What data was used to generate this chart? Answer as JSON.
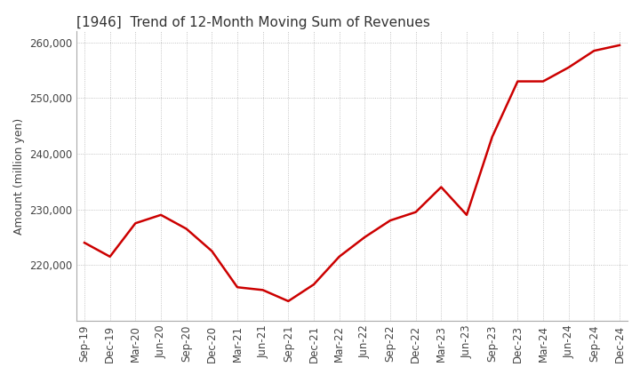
{
  "title": "[1946]  Trend of 12-Month Moving Sum of Revenues",
  "ylabel": "Amount (million yen)",
  "title_fontsize": 11,
  "label_fontsize": 9,
  "tick_fontsize": 8.5,
  "line_color": "#cc0000",
  "bg_color": "#ffffff",
  "grid_color": "#aaaaaa",
  "x_labels": [
    "Sep-19",
    "Dec-19",
    "Mar-20",
    "Jun-20",
    "Sep-20",
    "Dec-20",
    "Mar-21",
    "Jun-21",
    "Sep-21",
    "Dec-21",
    "Mar-22",
    "Jun-22",
    "Sep-22",
    "Dec-22",
    "Mar-23",
    "Jun-23",
    "Sep-23",
    "Dec-23",
    "Mar-24",
    "Jun-24",
    "Sep-24",
    "Dec-24"
  ],
  "values": [
    224000,
    221500,
    227500,
    229000,
    226500,
    222500,
    216000,
    215500,
    213500,
    216500,
    221500,
    225000,
    228000,
    229500,
    234000,
    229000,
    243000,
    253000,
    253000,
    255500,
    258500,
    259500
  ],
  "ylim_min": 210000,
  "ylim_max": 262000,
  "yticks": [
    220000,
    230000,
    240000,
    250000,
    260000
  ]
}
